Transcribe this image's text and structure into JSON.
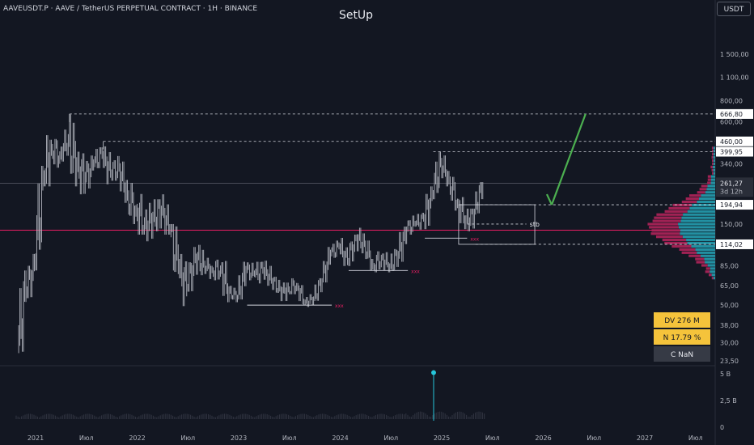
{
  "header": {
    "symbol_line": "AAVEUSDT.P · AAVE / TetherUS PERPETUAL CONTRACT · 1H · BINANCE",
    "title": "SetUp",
    "currency": "USDT"
  },
  "colors": {
    "background": "#131722",
    "candle": "#b2b5be",
    "grid": "#1e222d",
    "pink_line": "#e91e63",
    "arrow": "#4caf50",
    "profile_up": "#26a6b8",
    "profile_down": "#b0245a",
    "info_box_yellow": "#f5c33b",
    "info_box_dark": "#363a45",
    "label_bg": "#ffffff"
  },
  "chart_data": {
    "type": "candlestick",
    "symbol": "AAVEUSDT.P",
    "scale": "log",
    "ylim": [
      22,
      2300
    ],
    "y_ticks": [
      "1 500,00",
      "1 100,00",
      "800,00",
      "600,00",
      "340,00",
      "150,00",
      "85,00",
      "65,00",
      "50,00",
      "38,00",
      "30,00",
      "23,50"
    ],
    "price_labels": [
      {
        "price": 666.8,
        "text": "666,80"
      },
      {
        "price": 460.0,
        "text": "460,00"
      },
      {
        "price": 399.95,
        "text": "399,95"
      },
      {
        "price": 261.27,
        "text": "261,27",
        "sub": "3d 12h",
        "current": true
      },
      {
        "price": 194.94,
        "text": "194,94"
      },
      {
        "price": 114.02,
        "text": "114,02"
      }
    ],
    "x_axis": [
      "2021",
      "Июл",
      "2022",
      "Июл",
      "2023",
      "Июл",
      "2024",
      "Июл",
      "2025",
      "Июл",
      "2026",
      "Июл",
      "2027",
      "Июл"
    ],
    "series": [
      {
        "date": "2020-11",
        "low": 25,
        "high": 80,
        "close": 60
      },
      {
        "date": "2020-12",
        "low": 55,
        "high": 100,
        "close": 85
      },
      {
        "date": "2021-01",
        "low": 80,
        "high": 330,
        "close": 280
      },
      {
        "date": "2021-02",
        "low": 250,
        "high": 600,
        "close": 420
      },
      {
        "date": "2021-03",
        "low": 300,
        "high": 480,
        "close": 380
      },
      {
        "date": "2021-04",
        "low": 350,
        "high": 560,
        "close": 480
      },
      {
        "date": "2021-05",
        "low": 250,
        "high": 666,
        "close": 330
      },
      {
        "date": "2021-06",
        "low": 200,
        "high": 400,
        "close": 280
      },
      {
        "date": "2021-07",
        "low": 230,
        "high": 380,
        "close": 340
      },
      {
        "date": "2021-08",
        "low": 320,
        "high": 470,
        "close": 380
      },
      {
        "date": "2021-09",
        "low": 250,
        "high": 430,
        "close": 300
      },
      {
        "date": "2021-10",
        "low": 270,
        "high": 400,
        "close": 320
      },
      {
        "date": "2021-11",
        "low": 200,
        "high": 350,
        "close": 220
      },
      {
        "date": "2021-12",
        "low": 150,
        "high": 280,
        "close": 180
      },
      {
        "date": "2022-01",
        "low": 130,
        "high": 280,
        "close": 150
      },
      {
        "date": "2022-02",
        "low": 110,
        "high": 200,
        "close": 165
      },
      {
        "date": "2022-03",
        "low": 120,
        "high": 210,
        "close": 180
      },
      {
        "date": "2022-04",
        "low": 130,
        "high": 230,
        "close": 140
      },
      {
        "date": "2022-05",
        "low": 60,
        "high": 150,
        "close": 85
      },
      {
        "date": "2022-06",
        "low": 45,
        "high": 100,
        "close": 62
      },
      {
        "date": "2022-07",
        "low": 60,
        "high": 110,
        "close": 95
      },
      {
        "date": "2022-08",
        "low": 75,
        "high": 120,
        "close": 88
      },
      {
        "date": "2022-09",
        "low": 70,
        "high": 95,
        "close": 80
      },
      {
        "date": "2022-10",
        "low": 70,
        "high": 100,
        "close": 82
      },
      {
        "date": "2022-11",
        "low": 52,
        "high": 95,
        "close": 60
      },
      {
        "date": "2022-12",
        "low": 52,
        "high": 65,
        "close": 56
      },
      {
        "date": "2023-01",
        "low": 54,
        "high": 90,
        "close": 80
      },
      {
        "date": "2023-02",
        "low": 70,
        "high": 95,
        "close": 76
      },
      {
        "date": "2023-03",
        "low": 62,
        "high": 90,
        "close": 80
      },
      {
        "date": "2023-04",
        "low": 65,
        "high": 95,
        "close": 70
      },
      {
        "date": "2023-05",
        "low": 58,
        "high": 75,
        "close": 62
      },
      {
        "date": "2023-06",
        "low": 48,
        "high": 68,
        "close": 62
      },
      {
        "date": "2023-07",
        "low": 58,
        "high": 80,
        "close": 65
      },
      {
        "date": "2023-08",
        "low": 50,
        "high": 68,
        "close": 52
      },
      {
        "date": "2023-09",
        "low": 48,
        "high": 58,
        "close": 55
      },
      {
        "date": "2023-10",
        "low": 52,
        "high": 72,
        "close": 70
      },
      {
        "date": "2023-11",
        "low": 68,
        "high": 110,
        "close": 100
      },
      {
        "date": "2023-12",
        "low": 95,
        "high": 125,
        "close": 110
      },
      {
        "date": "2024-01",
        "low": 85,
        "high": 125,
        "close": 90
      },
      {
        "date": "2024-02",
        "low": 85,
        "high": 130,
        "close": 125
      },
      {
        "date": "2024-03",
        "low": 100,
        "high": 145,
        "close": 115
      },
      {
        "date": "2024-04",
        "low": 80,
        "high": 120,
        "close": 85
      },
      {
        "date": "2024-05",
        "low": 78,
        "high": 110,
        "close": 95
      },
      {
        "date": "2024-06",
        "low": 78,
        "high": 105,
        "close": 85
      },
      {
        "date": "2024-07",
        "low": 78,
        "high": 110,
        "close": 100
      },
      {
        "date": "2024-08",
        "low": 85,
        "high": 145,
        "close": 140
      },
      {
        "date": "2024-09",
        "low": 130,
        "high": 175,
        "close": 150
      },
      {
        "date": "2024-10",
        "low": 135,
        "high": 175,
        "close": 160
      },
      {
        "date": "2024-11",
        "low": 140,
        "high": 250,
        "close": 220
      },
      {
        "date": "2024-12",
        "low": 210,
        "high": 400,
        "close": 350
      },
      {
        "date": "2025-01",
        "low": 250,
        "high": 380,
        "close": 270
      },
      {
        "date": "2025-02",
        "low": 180,
        "high": 290,
        "close": 200
      },
      {
        "date": "2025-03",
        "low": 140,
        "high": 220,
        "close": 160
      },
      {
        "date": "2025-04",
        "low": 114,
        "high": 185,
        "close": 180
      },
      {
        "date": "2025-05",
        "low": 170,
        "high": 265,
        "close": 261.27
      }
    ],
    "volume": {
      "max_label": "5 B",
      "ticks": [
        "5 B",
        "2,5 B",
        "0"
      ]
    },
    "annotations": [
      {
        "type": "horizontal_line",
        "price": 138,
        "color": "#e91e63"
      },
      {
        "type": "dashed_line",
        "price": 666.8,
        "from": "2021-05"
      },
      {
        "type": "dashed_line",
        "price": 460.0,
        "from": "2021-09"
      },
      {
        "type": "dashed_line",
        "price": 399.95,
        "from": "2024-12"
      },
      {
        "type": "dashed_line",
        "price": 194.94,
        "from": "2025-05"
      },
      {
        "type": "dashed_line",
        "price": 114.02,
        "from": "2025-05"
      },
      {
        "type": "dashed_line",
        "price": 150,
        "from": "2025-04",
        "label": "stb"
      },
      {
        "type": "rectangle",
        "price_top": 194.94,
        "price_bottom": 114.02,
        "from": "2025-03",
        "to": "2025-12"
      },
      {
        "type": "support_line",
        "price": 50,
        "from": "2023-02",
        "to": "2023-12",
        "label": "xxx"
      },
      {
        "type": "support_line",
        "price": 80,
        "from": "2024-02",
        "to": "2024-09",
        "label": "xxx"
      },
      {
        "type": "support_line",
        "price": 124,
        "from": "2024-11",
        "to": "2025-04",
        "label": "xxx"
      },
      {
        "type": "arrow",
        "from_date": "2026-02",
        "from_price": 194.94,
        "to_date": "2026-06",
        "to_price": 666.8,
        "color": "#4caf50"
      }
    ],
    "info_box": [
      {
        "label": "DV 276 M"
      },
      {
        "label": "N 17.79 %"
      },
      {
        "label": "C  NaN"
      }
    ]
  }
}
